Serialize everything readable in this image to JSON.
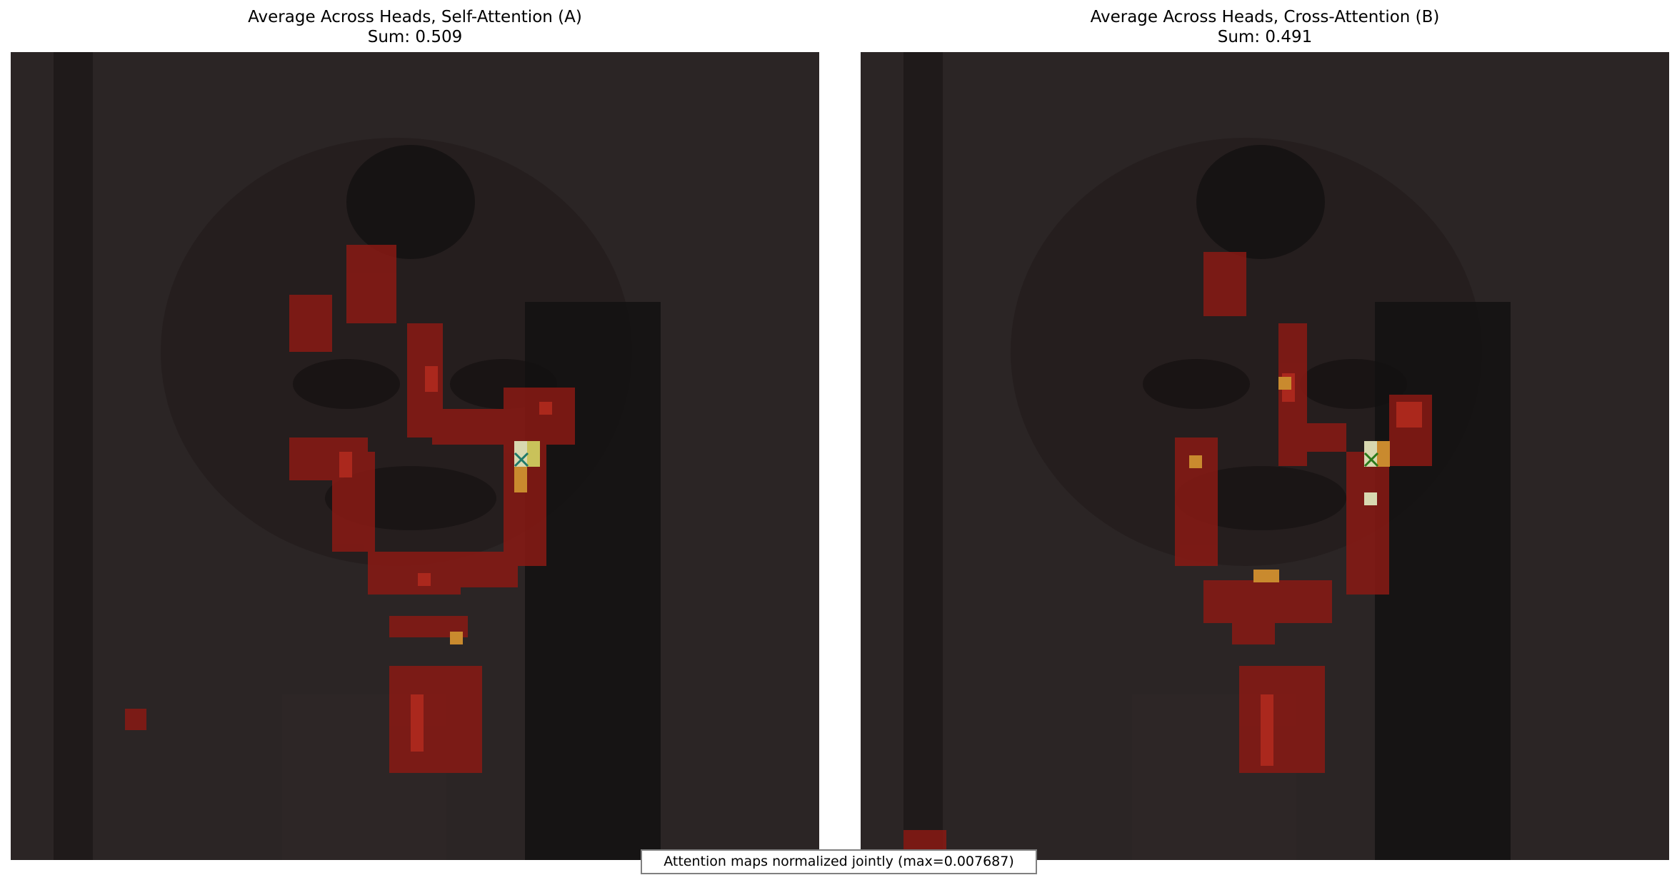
{
  "panels": [
    {
      "title": "Average Across Heads, Self-Attention (A)",
      "subtitle": "Sum: 0.509",
      "marker": "x"
    },
    {
      "title": "Average Across Heads, Cross-Attention (B)",
      "subtitle": "Sum: 0.491",
      "marker": "x"
    }
  ],
  "footer": {
    "text": "Attention maps normalized jointly (max=0.007687)"
  },
  "colors": {
    "background": "#2a2222",
    "attention_low": "#8a1a14",
    "attention_high": "#c98a2e",
    "peak": "#d8d8b0",
    "marker": "#1f7a6a"
  }
}
